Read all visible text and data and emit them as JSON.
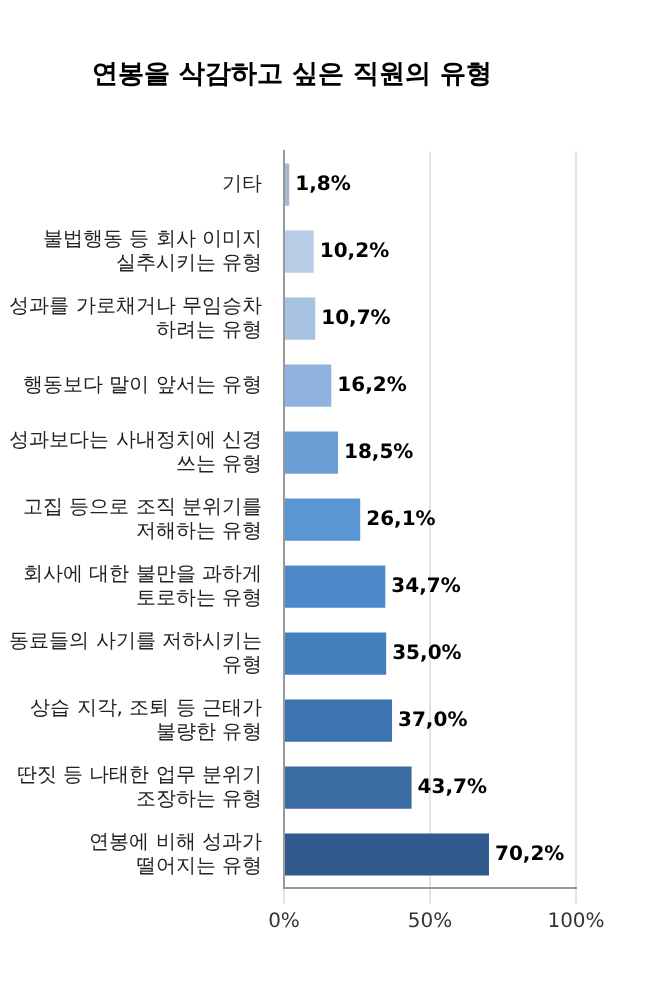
{
  "chart_data": {
    "type": "bar",
    "orientation": "horizontal",
    "title": "연봉을 삭감하고 싶은 직원의 유형",
    "categories": [
      "기타",
      "불법행동 등 회사 이미지 실추시키는 유형",
      "성과를 가로채거나 무임승차 하려는 유형",
      "행동보다 말이 앞서는 유형",
      "성과보다는 사내정치에 신경 쓰는 유형",
      "고집 등으로 조직 분위기를 저해하는 유형",
      "회사에 대한 불만을 과하게 토로하는 유형",
      "동료들의 사기를 저하시키는 유형",
      "상습 지각, 조퇴 등 근태가 불량한 유형",
      "딴짓 등 나태한 업무 분위기 조장하는 유형",
      "연봉에 비해 성과가 떨어지는 유형"
    ],
    "values": [
      1.8,
      10.2,
      10.7,
      16.2,
      18.5,
      26.1,
      34.7,
      35.0,
      37.0,
      43.7,
      70.2
    ],
    "value_labels": [
      "1,8%",
      "10,2%",
      "10,7%",
      "16,2%",
      "18,5%",
      "26,1%",
      "34,7%",
      "35,0%",
      "37,0%",
      "43,7%",
      "70,2%"
    ],
    "colors": [
      "#a9b8d0",
      "#b9cde6",
      "#a8c2e2",
      "#8fb3de",
      "#6b9fd6",
      "#5a95d4",
      "#4d89c9",
      "#447fbe",
      "#3d74b0",
      "#3a6ba3",
      "#2f5a8c"
    ],
    "xlim": [
      0,
      100
    ],
    "xticks": [
      {
        "value": 0,
        "label": "0%"
      },
      {
        "value": 50,
        "label": "50%"
      },
      {
        "value": 100,
        "label": "100%"
      }
    ],
    "grid": "x",
    "legend": false
  }
}
